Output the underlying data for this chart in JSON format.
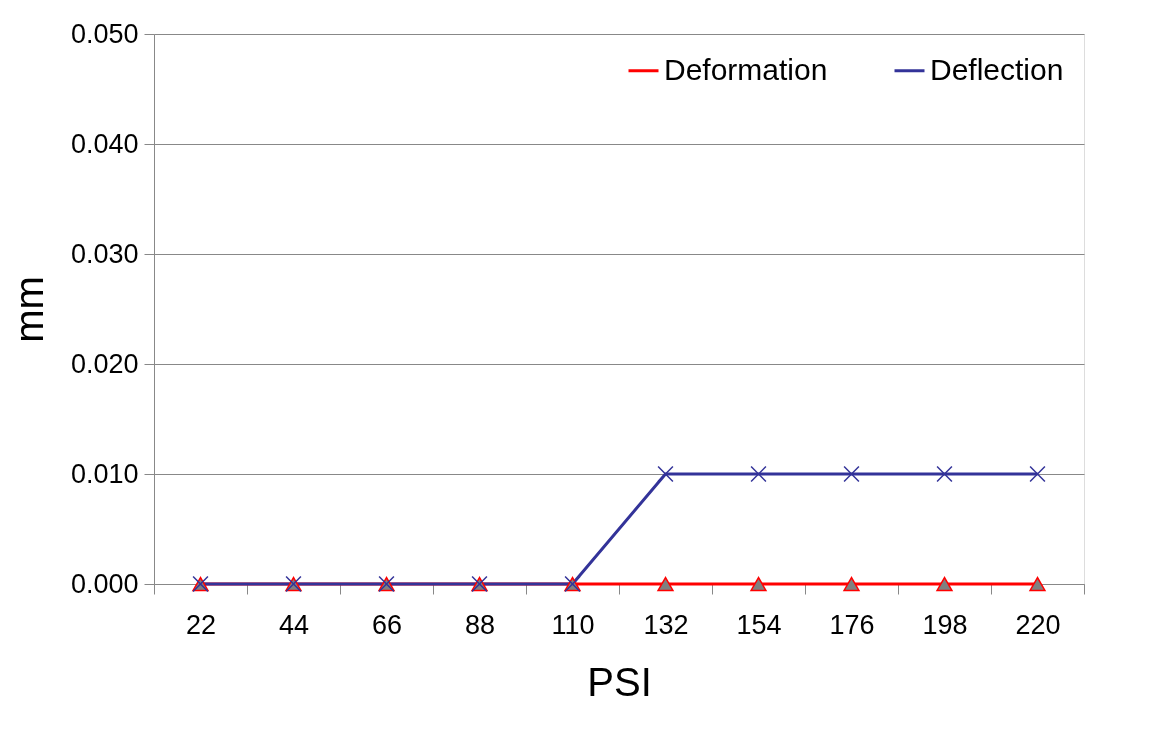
{
  "chart_data": {
    "type": "line",
    "xlabel": "PSI",
    "ylabel": "mm",
    "categories": [
      "22",
      "44",
      "66",
      "88",
      "110",
      "132",
      "154",
      "176",
      "198",
      "220"
    ],
    "series": [
      {
        "name": "Deformation",
        "color": "#ff0000",
        "marker": "triangle",
        "values": [
          0,
          0,
          0,
          0,
          0,
          0,
          0,
          0,
          0,
          0
        ]
      },
      {
        "name": "Deflection",
        "color": "#333399",
        "marker": "cross",
        "values": [
          0,
          0,
          0,
          0,
          0,
          0.01,
          0.01,
          0.01,
          0.01,
          0.01
        ]
      }
    ],
    "ylim": [
      0,
      0.05
    ],
    "yticks": [
      {
        "value": 0,
        "label": "0.000"
      },
      {
        "value": 0.01,
        "label": "0.010"
      },
      {
        "value": 0.02,
        "label": "0.020"
      },
      {
        "value": 0.03,
        "label": "0.030"
      },
      {
        "value": 0.04,
        "label": "0.040"
      },
      {
        "value": 0.05,
        "label": "0.050"
      }
    ],
    "grid": "y",
    "legend": "top right",
    "line_style": "solid"
  }
}
